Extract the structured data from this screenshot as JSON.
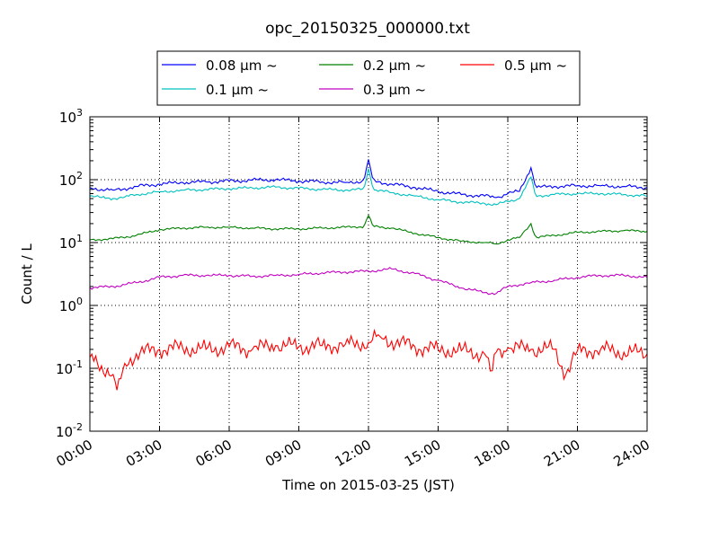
{
  "chart_data": {
    "type": "line",
    "title": "opc_20150325_000000.txt",
    "xlabel": "Time on 2015-03-25 (JST)",
    "ylabel": "Count / L",
    "x_unit": "hours",
    "xlim": [
      0,
      24
    ],
    "ylim": [
      0.01,
      1000
    ],
    "y_scale": "log",
    "grid": true,
    "legend_position": "top-center",
    "x_ticks": [
      "00:00",
      "03:00",
      "06:00",
      "09:00",
      "12:00",
      "15:00",
      "18:00",
      "21:00",
      "24:00"
    ],
    "y_ticks": [
      {
        "base": "10",
        "exp": "-2"
      },
      {
        "base": "10",
        "exp": "-1"
      },
      {
        "base": "10",
        "exp": "0"
      },
      {
        "base": "10",
        "exp": "1"
      },
      {
        "base": "10",
        "exp": "2"
      },
      {
        "base": "10",
        "exp": "3"
      }
    ],
    "series": [
      {
        "name": "0.08 μm ~",
        "color": "#0000ff",
        "points": [
          [
            0,
            75
          ],
          [
            0.5,
            70
          ],
          [
            1,
            68
          ],
          [
            1.5,
            72
          ],
          [
            2,
            78
          ],
          [
            3,
            85
          ],
          [
            4,
            90
          ],
          [
            5,
            92
          ],
          [
            6,
            95
          ],
          [
            7,
            98
          ],
          [
            8,
            100
          ],
          [
            9,
            95
          ],
          [
            10,
            92
          ],
          [
            11,
            90
          ],
          [
            11.8,
            95
          ],
          [
            12,
            210
          ],
          [
            12.2,
            95
          ],
          [
            13,
            85
          ],
          [
            14,
            75
          ],
          [
            15,
            65
          ],
          [
            16,
            58
          ],
          [
            17,
            55
          ],
          [
            17.5,
            52
          ],
          [
            18,
            60
          ],
          [
            18.5,
            65
          ],
          [
            19,
            155
          ],
          [
            19.2,
            75
          ],
          [
            20,
            78
          ],
          [
            21,
            80
          ],
          [
            22,
            80
          ],
          [
            23,
            78
          ],
          [
            24,
            75
          ]
        ]
      },
      {
        "name": "0.1 μm ~",
        "color": "#00c0c0",
        "points": [
          [
            0,
            55
          ],
          [
            0.5,
            52
          ],
          [
            1,
            50
          ],
          [
            1.5,
            53
          ],
          [
            2,
            58
          ],
          [
            3,
            64
          ],
          [
            4,
            68
          ],
          [
            5,
            70
          ],
          [
            6,
            72
          ],
          [
            7,
            74
          ],
          [
            8,
            76
          ],
          [
            9,
            73
          ],
          [
            10,
            70
          ],
          [
            11,
            68
          ],
          [
            11.8,
            70
          ],
          [
            12,
            150
          ],
          [
            12.2,
            70
          ],
          [
            13,
            62
          ],
          [
            14,
            55
          ],
          [
            15,
            48
          ],
          [
            16,
            44
          ],
          [
            17,
            42
          ],
          [
            17.5,
            40
          ],
          [
            18,
            45
          ],
          [
            18.5,
            50
          ],
          [
            19,
            110
          ],
          [
            19.2,
            55
          ],
          [
            20,
            58
          ],
          [
            21,
            60
          ],
          [
            22,
            60
          ],
          [
            23,
            58
          ],
          [
            24,
            55
          ]
        ]
      },
      {
        "name": "0.2 μm ~",
        "color": "#008000",
        "points": [
          [
            0,
            11
          ],
          [
            1,
            11.5
          ],
          [
            2,
            13
          ],
          [
            3,
            16
          ],
          [
            4,
            17
          ],
          [
            5,
            17.5
          ],
          [
            6,
            17.5
          ],
          [
            7,
            17
          ],
          [
            8,
            16.5
          ],
          [
            9,
            16.5
          ],
          [
            10,
            17
          ],
          [
            11,
            17.5
          ],
          [
            11.8,
            18
          ],
          [
            12,
            27
          ],
          [
            12.2,
            18
          ],
          [
            13,
            17
          ],
          [
            14,
            14
          ],
          [
            15,
            12
          ],
          [
            16,
            10.5
          ],
          [
            17,
            10
          ],
          [
            17.5,
            9.5
          ],
          [
            18,
            11
          ],
          [
            18.5,
            12
          ],
          [
            19,
            20
          ],
          [
            19.2,
            12
          ],
          [
            20,
            13
          ],
          [
            21,
            14.5
          ],
          [
            22,
            15
          ],
          [
            23,
            15.5
          ],
          [
            24,
            15
          ]
        ]
      },
      {
        "name": "0.3 μm ~",
        "color": "#c000c0",
        "points": [
          [
            0,
            1.9
          ],
          [
            1,
            2.0
          ],
          [
            2,
            2.3
          ],
          [
            3,
            2.8
          ],
          [
            4,
            3.0
          ],
          [
            5,
            3.0
          ],
          [
            6,
            3.0
          ],
          [
            7,
            2.9
          ],
          [
            8,
            3.0
          ],
          [
            9,
            3.1
          ],
          [
            10,
            3.3
          ],
          [
            11,
            3.4
          ],
          [
            12,
            3.5
          ],
          [
            13,
            3.8
          ],
          [
            14,
            3.2
          ],
          [
            15,
            2.5
          ],
          [
            16,
            1.9
          ],
          [
            17,
            1.6
          ],
          [
            17.5,
            1.55
          ],
          [
            18,
            2.0
          ],
          [
            19,
            2.3
          ],
          [
            20,
            2.5
          ],
          [
            21,
            2.8
          ],
          [
            22,
            3.0
          ],
          [
            23,
            3.0
          ],
          [
            24,
            2.8
          ]
        ]
      },
      {
        "name": "0.5 μm ~",
        "color": "#ff0000",
        "points": [
          [
            0,
            0.15
          ],
          [
            0.5,
            0.11
          ],
          [
            1,
            0.08
          ],
          [
            1.2,
            0.04
          ],
          [
            1.5,
            0.12
          ],
          [
            2,
            0.17
          ],
          [
            3,
            0.2
          ],
          [
            4,
            0.21
          ],
          [
            5,
            0.2
          ],
          [
            6,
            0.22
          ],
          [
            7,
            0.2
          ],
          [
            8,
            0.23
          ],
          [
            9,
            0.22
          ],
          [
            10,
            0.23
          ],
          [
            11,
            0.24
          ],
          [
            12,
            0.26
          ],
          [
            12.5,
            0.32
          ],
          [
            13,
            0.27
          ],
          [
            14,
            0.22
          ],
          [
            15,
            0.2
          ],
          [
            16,
            0.19
          ],
          [
            17,
            0.17
          ],
          [
            17.3,
            0.08
          ],
          [
            17.5,
            0.18
          ],
          [
            18,
            0.21
          ],
          [
            19,
            0.2
          ],
          [
            20,
            0.2
          ],
          [
            20.5,
            0.08
          ],
          [
            21,
            0.19
          ],
          [
            22,
            0.2
          ],
          [
            23,
            0.18
          ],
          [
            24,
            0.17
          ]
        ]
      }
    ]
  }
}
